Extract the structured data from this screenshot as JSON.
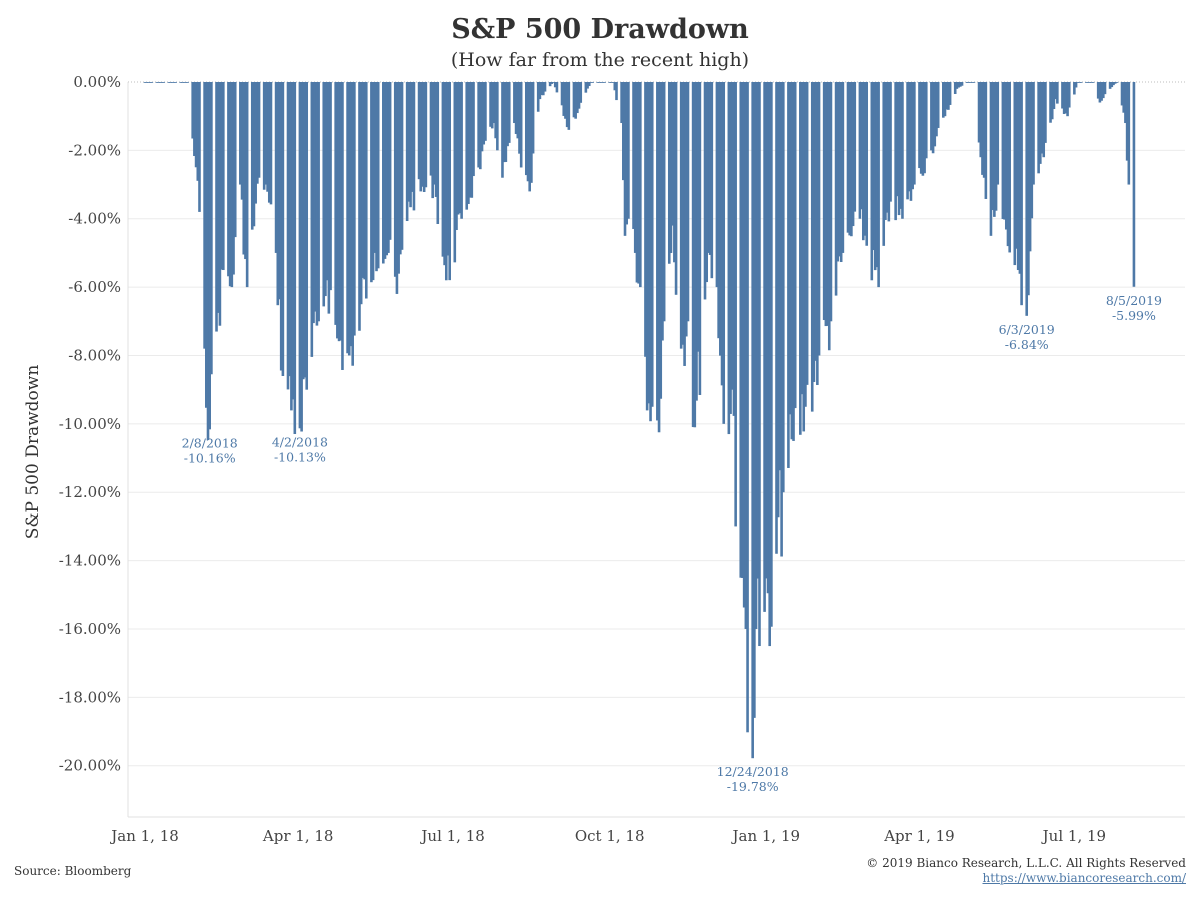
{
  "header": {
    "title": "S&P 500 Drawdown",
    "subtitle": "(How far from the recent high)"
  },
  "footer": {
    "source": "Source: Bloomberg",
    "copyright": "© 2019 Bianco Research, L.L.C. All Rights Reserved",
    "url": "https://www.biancoresearch.com/"
  },
  "colors": {
    "bar": "#4e79a7",
    "annotation": "#4e79a7",
    "grid": "#ebebeb"
  },
  "chart_data": {
    "type": "bar",
    "title": "S&P 500 Drawdown",
    "subtitle": "(How far from the recent high)",
    "ylabel": "S&P 500 Drawdown",
    "xlabel": "",
    "ylim": [
      -0.215,
      0.0
    ],
    "xlim": [
      "2017-12-22",
      "2019-09-04"
    ],
    "grid": "horizontal",
    "y_ticks": [
      0,
      -0.02,
      -0.04,
      -0.06,
      -0.08,
      -0.1,
      -0.12,
      -0.14,
      -0.16,
      -0.18,
      -0.2
    ],
    "y_tick_labels": [
      "0.00%",
      "-2.00%",
      "-4.00%",
      "-6.00%",
      "-8.00%",
      "-10.00%",
      "-12.00%",
      "-14.00%",
      "-16.00%",
      "-18.00%",
      "-20.00%"
    ],
    "x_ticks": [
      "2018-01-01",
      "2018-04-01",
      "2018-07-01",
      "2018-10-01",
      "2019-01-01",
      "2019-04-01",
      "2019-07-01"
    ],
    "x_tick_labels": [
      "Jan 1, 18",
      "Apr 1, 18",
      "Jul 1, 18",
      "Oct 1, 18",
      "Jan 1, 19",
      "Apr 1, 19",
      "Jul 1, 19"
    ],
    "anchors": [
      [
        "2018-01-01",
        0.0
      ],
      [
        "2018-01-26",
        0.0
      ],
      [
        "2018-02-02",
        -0.038
      ],
      [
        "2018-02-05",
        -0.078
      ],
      [
        "2018-02-08",
        -0.1016
      ],
      [
        "2018-02-12",
        -0.073
      ],
      [
        "2018-02-16",
        -0.055
      ],
      [
        "2018-02-21",
        -0.06
      ],
      [
        "2018-02-26",
        -0.03
      ],
      [
        "2018-03-02",
        -0.06
      ],
      [
        "2018-03-09",
        -0.028
      ],
      [
        "2018-03-13",
        -0.03
      ],
      [
        "2018-03-19",
        -0.05
      ],
      [
        "2018-03-23",
        -0.086
      ],
      [
        "2018-04-02",
        -0.1013
      ],
      [
        "2018-04-06",
        -0.09
      ],
      [
        "2018-04-13",
        -0.07
      ],
      [
        "2018-04-18",
        -0.058
      ],
      [
        "2018-04-24",
        -0.075
      ],
      [
        "2018-05-03",
        -0.083
      ],
      [
        "2018-05-08",
        -0.065
      ],
      [
        "2018-05-16",
        -0.05
      ],
      [
        "2018-05-24",
        -0.05
      ],
      [
        "2018-05-29",
        -0.062
      ],
      [
        "2018-06-05",
        -0.035
      ],
      [
        "2018-06-12",
        -0.032
      ],
      [
        "2018-06-20",
        -0.03
      ],
      [
        "2018-06-27",
        -0.058
      ],
      [
        "2018-07-06",
        -0.04
      ],
      [
        "2018-07-16",
        -0.025
      ],
      [
        "2018-07-25",
        -0.012
      ],
      [
        "2018-07-30",
        -0.028
      ],
      [
        "2018-08-06",
        -0.012
      ],
      [
        "2018-08-10",
        -0.025
      ],
      [
        "2018-08-15",
        -0.032
      ],
      [
        "2018-08-21",
        -0.005
      ],
      [
        "2018-08-29",
        0.0
      ],
      [
        "2018-09-07",
        -0.014
      ],
      [
        "2018-09-20",
        0.0
      ],
      [
        "2018-10-03",
        0.0
      ],
      [
        "2018-10-08",
        -0.012
      ],
      [
        "2018-10-10",
        -0.045
      ],
      [
        "2018-10-12",
        -0.04
      ],
      [
        "2018-10-16",
        -0.05
      ],
      [
        "2018-10-19",
        -0.06
      ],
      [
        "2018-10-24",
        -0.094
      ],
      [
        "2018-10-29",
        -0.099
      ],
      [
        "2018-11-02",
        -0.07
      ],
      [
        "2018-11-07",
        -0.042
      ],
      [
        "2018-11-12",
        -0.078
      ],
      [
        "2018-11-16",
        -0.07
      ],
      [
        "2018-11-20",
        -0.101
      ],
      [
        "2018-11-28",
        -0.05
      ],
      [
        "2018-12-03",
        -0.06
      ],
      [
        "2018-12-07",
        -0.1
      ],
      [
        "2018-12-12",
        -0.09
      ],
      [
        "2018-12-14",
        -0.13
      ],
      [
        "2018-12-17",
        -0.145
      ],
      [
        "2018-12-20",
        -0.16
      ],
      [
        "2018-12-24",
        -0.1978
      ],
      [
        "2018-12-26",
        -0.16
      ],
      [
        "2018-12-31",
        -0.155
      ],
      [
        "2019-01-03",
        -0.165
      ],
      [
        "2019-01-07",
        -0.138
      ],
      [
        "2019-01-11",
        -0.12
      ],
      [
        "2019-01-17",
        -0.105
      ],
      [
        "2019-01-24",
        -0.095
      ],
      [
        "2019-02-01",
        -0.08
      ],
      [
        "2019-02-08",
        -0.07
      ],
      [
        "2019-02-15",
        -0.05
      ],
      [
        "2019-02-25",
        -0.04
      ],
      [
        "2019-03-08",
        -0.06
      ],
      [
        "2019-03-15",
        -0.035
      ],
      [
        "2019-03-22",
        -0.04
      ],
      [
        "2019-03-29",
        -0.03
      ],
      [
        "2019-04-08",
        -0.02
      ],
      [
        "2019-04-16",
        -0.01
      ],
      [
        "2019-04-23",
        -0.002
      ],
      [
        "2019-04-30",
        0.0
      ],
      [
        "2019-05-03",
        0.0
      ],
      [
        "2019-05-07",
        -0.022
      ],
      [
        "2019-05-13",
        -0.045
      ],
      [
        "2019-05-17",
        -0.03
      ],
      [
        "2019-05-23",
        -0.048
      ],
      [
        "2019-05-29",
        -0.055
      ],
      [
        "2019-06-03",
        -0.0684
      ],
      [
        "2019-06-07",
        -0.03
      ],
      [
        "2019-06-13",
        -0.022
      ],
      [
        "2019-06-20",
        -0.005
      ],
      [
        "2019-06-27",
        -0.01
      ],
      [
        "2019-07-03",
        0.0
      ],
      [
        "2019-07-12",
        0.0
      ],
      [
        "2019-07-16",
        -0.006
      ],
      [
        "2019-07-22",
        -0.002
      ],
      [
        "2019-07-26",
        0.0
      ],
      [
        "2019-07-31",
        -0.012
      ],
      [
        "2019-08-01",
        -0.023
      ],
      [
        "2019-08-02",
        -0.03
      ],
      [
        "2019-08-05",
        -0.0599
      ]
    ],
    "annotations": [
      {
        "date": "2018-02-08",
        "value": -0.1016,
        "label_date": "2/8/2018",
        "label_value": "-10.16%"
      },
      {
        "date": "2018-04-02",
        "value": -0.1013,
        "label_date": "4/2/2018",
        "label_value": "-10.13%"
      },
      {
        "date": "2018-12-24",
        "value": -0.1978,
        "label_date": "12/24/2018",
        "label_value": "-19.78%"
      },
      {
        "date": "2019-06-03",
        "value": -0.0684,
        "label_date": "6/3/2019",
        "label_value": "-6.84%"
      },
      {
        "date": "2019-08-05",
        "value": -0.0599,
        "label_date": "8/5/2019",
        "label_value": "-5.99%"
      }
    ]
  }
}
